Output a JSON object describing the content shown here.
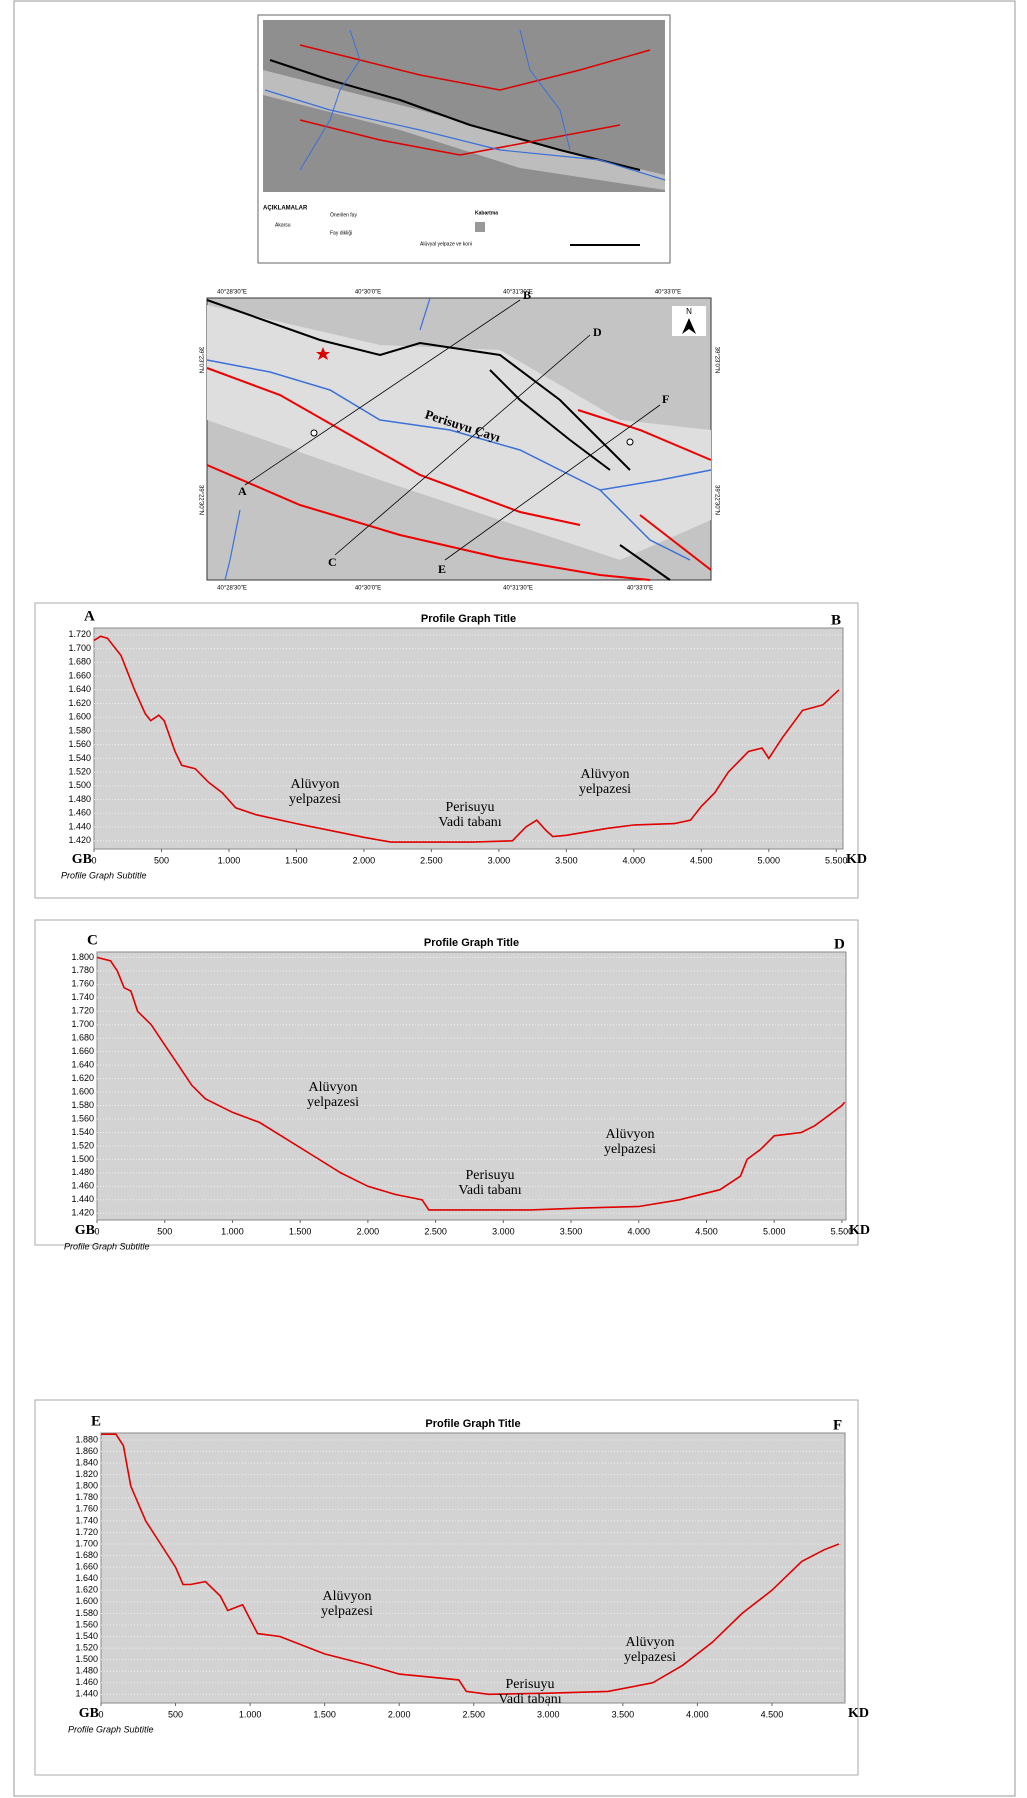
{
  "maps": {
    "overview": {
      "legend_title": "AÇIKLAMALAR",
      "legend_items": [
        "Akarsu",
        "Önerilen fay",
        "Fay dikliği",
        "Alüvyal yelpaze ve koni"
      ],
      "relief": "Kabartma"
    },
    "profile_map": {
      "lon_labels": [
        "40°28'30\"E",
        "40°30'0\"E",
        "40°31'30\"E",
        "40°33'0\"E"
      ],
      "lat_labels": [
        "39°23'0\"N",
        "39°22'30\"N"
      ],
      "north": "N",
      "river": "Perisuyu Çayı",
      "profile_letters": [
        "A",
        "B",
        "C",
        "D",
        "E",
        "F"
      ]
    }
  },
  "chart_data": [
    {
      "type": "line",
      "title": "Profile Graph Title",
      "subtitle": "Profile Graph Subtitle",
      "start_label": "A",
      "end_label": "B",
      "left_label": "GB",
      "right_label": "KD",
      "color": "#e00000",
      "grid": true,
      "annotations": [
        [
          "Alüvyon",
          "yelpazesi"
        ],
        [
          "Perisuyu",
          "Vadi tabanı"
        ],
        [
          "Alüvyon",
          "yelpazesi"
        ]
      ],
      "x": [
        0,
        50,
        100,
        200,
        300,
        380,
        420,
        480,
        520,
        600,
        650,
        750,
        850,
        950,
        1050,
        1200,
        1500,
        1800,
        2000,
        2200,
        2500,
        2800,
        3100,
        3200,
        3280,
        3350,
        3400,
        3500,
        3800,
        4000,
        4300,
        4420,
        4500,
        4600,
        4700,
        4850,
        4950,
        5000,
        5100,
        5250,
        5400,
        5520
      ],
      "values": [
        1712,
        1718,
        1715,
        1690,
        1640,
        1605,
        1595,
        1603,
        1595,
        1550,
        1530,
        1525,
        1505,
        1490,
        1468,
        1458,
        1445,
        1433,
        1425,
        1418,
        1418,
        1418,
        1420,
        1440,
        1450,
        1435,
        1426,
        1428,
        1438,
        1443,
        1445,
        1450,
        1470,
        1490,
        1520,
        1550,
        1555,
        1540,
        1570,
        1610,
        1618,
        1640
      ],
      "xlim": [
        0,
        5550
      ],
      "ylim": [
        1408,
        1730
      ],
      "xticks": [
        0,
        500,
        {
          "value": 1000,
          "label": "1.000"
        },
        {
          "value": 1500,
          "label": "1.500"
        },
        {
          "value": 2000,
          "label": "2.000"
        },
        {
          "value": 2500,
          "label": "2.500"
        },
        {
          "value": 3000,
          "label": "3.000"
        },
        {
          "value": 3500,
          "label": "3.500"
        },
        {
          "value": 4000,
          "label": "4.000"
        },
        {
          "value": 4500,
          "label": "4.500"
        },
        {
          "value": 5000,
          "label": "5.000"
        },
        {
          "value": 5500,
          "label": "5.500"
        }
      ],
      "yticks": [
        {
          "value": 1420,
          "label": "1.420"
        },
        {
          "value": 1440,
          "label": "1.440"
        },
        {
          "value": 1460,
          "label": "1.460"
        },
        {
          "value": 1480,
          "label": "1.480"
        },
        {
          "value": 1500,
          "label": "1.500"
        },
        {
          "value": 1520,
          "label": "1.520"
        },
        {
          "value": 1540,
          "label": "1.540"
        },
        {
          "value": 1560,
          "label": "1.560"
        },
        {
          "value": 1580,
          "label": "1.580"
        },
        {
          "value": 1600,
          "label": "1.600"
        },
        {
          "value": 1620,
          "label": "1.620"
        },
        {
          "value": 1640,
          "label": "1.640"
        },
        {
          "value": 1660,
          "label": "1.660"
        },
        {
          "value": 1680,
          "label": "1.680"
        },
        {
          "value": 1700,
          "label": "1.700"
        },
        {
          "value": 1720,
          "label": "1.720"
        }
      ]
    },
    {
      "type": "line",
      "title": "Profile Graph Title",
      "subtitle": "Profile Graph Subtitle",
      "start_label": "C",
      "end_label": "D",
      "left_label": "GB",
      "right_label": "KD",
      "color": "#e00000",
      "grid": true,
      "annotations": [
        [
          "Alüvyon",
          "yelpazesi"
        ],
        [
          "Perisuyu",
          "Vadi tabanı"
        ],
        [
          "Alüvyon",
          "yelpazesi"
        ]
      ],
      "x": [
        0,
        100,
        150,
        200,
        250,
        300,
        400,
        500,
        600,
        700,
        800,
        1000,
        1200,
        1400,
        1600,
        1800,
        2000,
        2200,
        2400,
        2450,
        2800,
        3200,
        3600,
        4000,
        4300,
        4600,
        4750,
        4800,
        4900,
        5000,
        5200,
        5300,
        5400,
        5500,
        5520
      ],
      "values": [
        1800,
        1795,
        1780,
        1755,
        1750,
        1720,
        1700,
        1670,
        1640,
        1610,
        1590,
        1570,
        1555,
        1530,
        1505,
        1480,
        1460,
        1448,
        1440,
        1425,
        1425,
        1425,
        1428,
        1430,
        1440,
        1455,
        1475,
        1500,
        1515,
        1535,
        1540,
        1550,
        1565,
        1580,
        1585
      ],
      "xlim": [
        0,
        5530
      ],
      "ylim": [
        1410,
        1808
      ],
      "xticks": [
        0,
        500,
        {
          "value": 1000,
          "label": "1.000"
        },
        {
          "value": 1500,
          "label": "1.500"
        },
        {
          "value": 2000,
          "label": "2.000"
        },
        {
          "value": 2500,
          "label": "2.500"
        },
        {
          "value": 3000,
          "label": "3.000"
        },
        {
          "value": 3500,
          "label": "3.500"
        },
        {
          "value": 4000,
          "label": "4.000"
        },
        {
          "value": 4500,
          "label": "4.500"
        },
        {
          "value": 5000,
          "label": "5.000"
        },
        {
          "value": 5500,
          "label": "5.500"
        }
      ],
      "yticks": [
        {
          "value": 1420,
          "label": "1.420"
        },
        {
          "value": 1440,
          "label": "1.440"
        },
        {
          "value": 1460,
          "label": "1.460"
        },
        {
          "value": 1480,
          "label": "1.480"
        },
        {
          "value": 1500,
          "label": "1.500"
        },
        {
          "value": 1520,
          "label": "1.520"
        },
        {
          "value": 1540,
          "label": "1.540"
        },
        {
          "value": 1560,
          "label": "1.560"
        },
        {
          "value": 1580,
          "label": "1.580"
        },
        {
          "value": 1600,
          "label": "1.600"
        },
        {
          "value": 1620,
          "label": "1.620"
        },
        {
          "value": 1640,
          "label": "1.640"
        },
        {
          "value": 1660,
          "label": "1.660"
        },
        {
          "value": 1680,
          "label": "1.680"
        },
        {
          "value": 1700,
          "label": "1.700"
        },
        {
          "value": 1720,
          "label": "1.720"
        },
        {
          "value": 1740,
          "label": "1.740"
        },
        {
          "value": 1760,
          "label": "1.760"
        },
        {
          "value": 1780,
          "label": "1.780"
        },
        {
          "value": 1800,
          "label": "1.800"
        }
      ]
    },
    {
      "type": "line",
      "title": "Profile Graph Title",
      "subtitle": "Profile Graph Subtitle",
      "start_label": "E",
      "end_label": "F",
      "left_label": "GB",
      "right_label": "KD",
      "color": "#e00000",
      "grid": true,
      "annotations": [
        [
          "Alüvyon",
          "yelpazesi"
        ],
        [
          "Perisuyu",
          "Vadi tabanı"
        ],
        [
          "Alüvyon",
          "yelpazesi"
        ]
      ],
      "x": [
        0,
        100,
        150,
        200,
        300,
        400,
        500,
        550,
        600,
        700,
        800,
        850,
        950,
        1050,
        1200,
        1500,
        1800,
        2000,
        2400,
        2450,
        2600,
        3000,
        3400,
        3700,
        3900,
        4100,
        4300,
        4500,
        4700,
        4850,
        4950
      ],
      "values": [
        1890,
        1890,
        1870,
        1800,
        1740,
        1700,
        1660,
        1630,
        1630,
        1635,
        1610,
        1585,
        1595,
        1545,
        1540,
        1510,
        1490,
        1475,
        1465,
        1445,
        1440,
        1442,
        1445,
        1460,
        1490,
        1530,
        1580,
        1620,
        1670,
        1690,
        1700
      ],
      "xlim": [
        0,
        4990
      ],
      "ylim": [
        1425,
        1892
      ],
      "xticks": [
        0,
        500,
        {
          "value": 1000,
          "label": "1.000"
        },
        {
          "value": 1500,
          "label": "1.500"
        },
        {
          "value": 2000,
          "label": "2.000"
        },
        {
          "value": 2500,
          "label": "2.500"
        },
        {
          "value": 3000,
          "label": "3.000"
        },
        {
          "value": 3500,
          "label": "3.500"
        },
        {
          "value": 4000,
          "label": "4.000"
        },
        {
          "value": 4500,
          "label": "4.500"
        }
      ],
      "yticks": [
        {
          "value": 1440,
          "label": "1.440"
        },
        {
          "value": 1460,
          "label": "1.460"
        },
        {
          "value": 1480,
          "label": "1.480"
        },
        {
          "value": 1500,
          "label": "1.500"
        },
        {
          "value": 1520,
          "label": "1.520"
        },
        {
          "value": 1540,
          "label": "1.540"
        },
        {
          "value": 1560,
          "label": "1.560"
        },
        {
          "value": 1580,
          "label": "1.580"
        },
        {
          "value": 1600,
          "label": "1.600"
        },
        {
          "value": 1620,
          "label": "1.620"
        },
        {
          "value": 1640,
          "label": "1.640"
        },
        {
          "value": 1660,
          "label": "1.660"
        },
        {
          "value": 1680,
          "label": "1.680"
        },
        {
          "value": 1700,
          "label": "1.700"
        },
        {
          "value": 1720,
          "label": "1.720"
        },
        {
          "value": 1740,
          "label": "1.740"
        },
        {
          "value": 1760,
          "label": "1.760"
        },
        {
          "value": 1780,
          "label": "1.780"
        },
        {
          "value": 1800,
          "label": "1.800"
        },
        {
          "value": 1820,
          "label": "1.820"
        },
        {
          "value": 1840,
          "label": "1.840"
        },
        {
          "value": 1860,
          "label": "1.860"
        },
        {
          "value": 1880,
          "label": "1.880"
        }
      ]
    }
  ]
}
